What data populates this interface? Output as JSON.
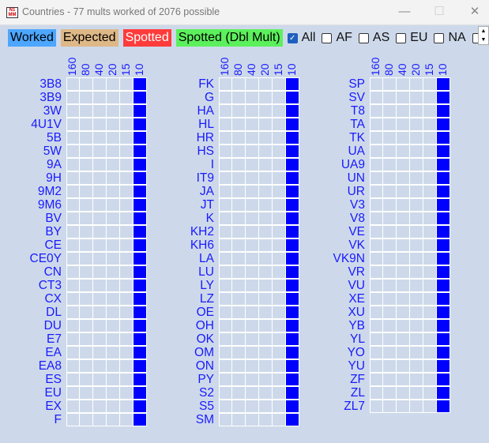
{
  "window": {
    "title": "Countries - 77 mults worked of 2076 possible",
    "minimize": "—",
    "maximize": "☐",
    "close": "✕"
  },
  "legend": [
    {
      "label": "Worked",
      "bg": "#4da6ff",
      "fg": "#000"
    },
    {
      "label": "Expected",
      "bg": "#deb887",
      "fg": "#000"
    },
    {
      "label": "Spotted",
      "bg": "#ff3b3b",
      "fg": "#fff"
    },
    {
      "label": "Spotted (Dbl Mult)",
      "bg": "#5cf05c",
      "fg": "#000"
    }
  ],
  "filters": [
    {
      "label": "All",
      "checked": true
    },
    {
      "label": "AF",
      "checked": false
    },
    {
      "label": "AS",
      "checked": false
    },
    {
      "label": "EU",
      "checked": false
    },
    {
      "label": "NA",
      "checked": false
    }
  ],
  "bands": [
    "160",
    "80",
    "40",
    "20",
    "15",
    "10"
  ],
  "worked_color": "#0000ff",
  "groups": [
    {
      "countries": [
        "3B8",
        "3B9",
        "3W",
        "4U1V",
        "5B",
        "5W",
        "9A",
        "9H",
        "9M2",
        "9M6",
        "BV",
        "BY",
        "CE",
        "CE0Y",
        "CN",
        "CT3",
        "CX",
        "DL",
        "DU",
        "E7",
        "EA",
        "EA8",
        "ES",
        "EU",
        "EX",
        "F"
      ],
      "worked_band": "10"
    },
    {
      "countries": [
        "FK",
        "G",
        "HA",
        "HL",
        "HR",
        "HS",
        "I",
        "IT9",
        "JA",
        "JT",
        "K",
        "KH2",
        "KH6",
        "LA",
        "LU",
        "LY",
        "LZ",
        "OE",
        "OH",
        "OK",
        "OM",
        "ON",
        "PY",
        "S2",
        "S5",
        "SM"
      ],
      "worked_band": "10"
    },
    {
      "countries": [
        "SP",
        "SV",
        "T8",
        "TA",
        "TK",
        "UA",
        "UA9",
        "UN",
        "UR",
        "V3",
        "V8",
        "VE",
        "VK",
        "VK9N",
        "VR",
        "VU",
        "XE",
        "XU",
        "YB",
        "YL",
        "YO",
        "YU",
        "ZF",
        "ZL",
        "ZL7"
      ],
      "worked_band": "10"
    }
  ]
}
